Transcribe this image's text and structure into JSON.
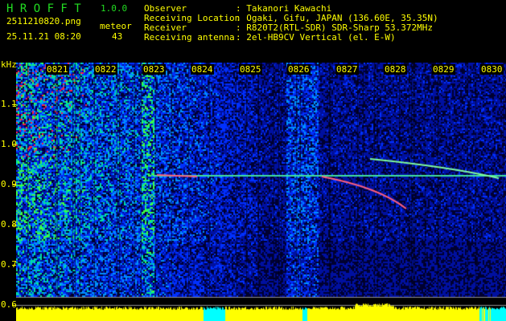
{
  "header": {
    "app_name": "H R O F F T",
    "version": "1.0.0",
    "filename": "2511210820.png",
    "datetime": "25.11.21 08:20",
    "meteor_label": "meteor",
    "meteor_count": "43",
    "info": [
      {
        "label": "Observer",
        "value": ": Takanori Kawachi"
      },
      {
        "label": "Receiving Location",
        "value": ": Ogaki, Gifu, JAPAN (136.60E, 35.35N)"
      },
      {
        "label": "Receiver",
        "value": ": R820T2(RTL-SDR) SDR-Sharp 53.372MHz"
      },
      {
        "label": "Receiving antenna",
        "value": ": 2el-HB9CV Vertical (el. E-W)"
      }
    ]
  },
  "axis": {
    "unit": "kHz",
    "y_labels": [
      "1.1",
      "1.0",
      "0.9",
      "0.8",
      "0.7",
      "0.6"
    ],
    "x_labels": [
      "0821",
      "0822",
      "0823",
      "0824",
      "0825",
      "0826",
      "0827",
      "0828",
      "0829",
      "0830"
    ]
  },
  "colors": {
    "text": "#ffff00",
    "title": "#22dd22",
    "background": "#000000"
  }
}
